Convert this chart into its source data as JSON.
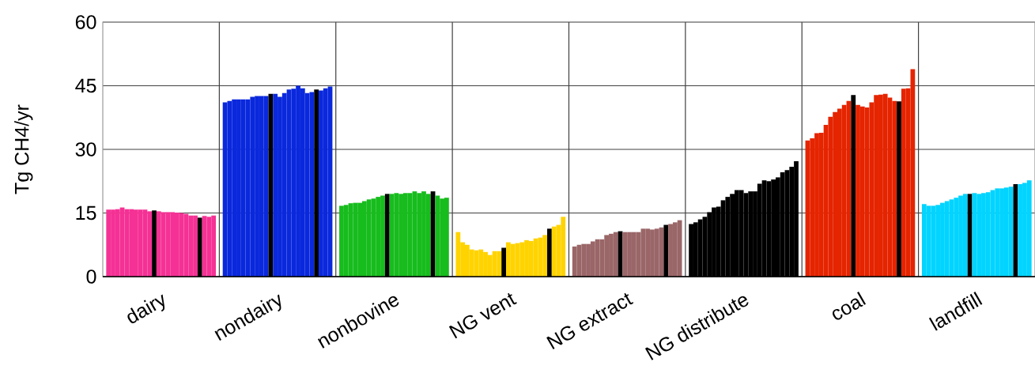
{
  "chart_data": {
    "type": "bar",
    "ylabel": "Tg CH4/yr",
    "categories": [
      "dairy",
      "nondairy",
      "nonbovine",
      "NG vent",
      "NG extract",
      "NG distribute",
      "coal",
      "landfill"
    ],
    "series": [
      {
        "colors": [
          "#f53195",
          "#0a28dc",
          "#17bc1d",
          "#ffd300",
          "#9a6668",
          "#000000",
          "#e52400",
          "#00d4ff"
        ],
        "values": [
          15.8,
          41.1,
          16.7,
          10.5,
          7.1,
          12.4,
          32.1,
          17.1
        ]
      },
      {
        "colors": [
          "#f53195",
          "#0a28dc",
          "#17bc1d",
          "#ffd300",
          "#9a6668",
          "#000000",
          "#e52400",
          "#00d4ff"
        ],
        "values": [
          15.8,
          41.4,
          16.9,
          8.1,
          7.5,
          12.8,
          32.6,
          16.7
        ]
      },
      {
        "colors": [
          "#f53195",
          "#0a28dc",
          "#17bc1d",
          "#ffd300",
          "#9a6668",
          "#000000",
          "#e52400",
          "#00d4ff"
        ],
        "values": [
          15.9,
          41.8,
          17.3,
          7.5,
          7.7,
          13.5,
          33.8,
          16.7
        ]
      },
      {
        "colors": [
          "#f53195",
          "#0a28dc",
          "#17bc1d",
          "#ffd300",
          "#9a6668",
          "#000000",
          "#e52400",
          "#00d4ff"
        ],
        "values": [
          16.3,
          41.8,
          17.4,
          6.4,
          7.7,
          14.1,
          33.9,
          16.9
        ]
      },
      {
        "colors": [
          "#f53195",
          "#0a28dc",
          "#17bc1d",
          "#ffd300",
          "#9a6668",
          "#000000",
          "#e52400",
          "#00d4ff"
        ],
        "values": [
          15.9,
          41.8,
          17.4,
          6.2,
          8.3,
          15.2,
          35.8,
          17.4
        ]
      },
      {
        "colors": [
          "#f53195",
          "#0a28dc",
          "#17bc1d",
          "#ffd300",
          "#9a6668",
          "#000000",
          "#e52400",
          "#00d4ff"
        ],
        "values": [
          15.9,
          41.8,
          17.8,
          6.4,
          8.8,
          16.3,
          37.7,
          17.8
        ]
      },
      {
        "colors": [
          "#f53195",
          "#0a28dc",
          "#17bc1d",
          "#ffd300",
          "#9a6668",
          "#000000",
          "#e52400",
          "#00d4ff"
        ],
        "values": [
          15.8,
          42.4,
          18.2,
          5.8,
          8.8,
          16.5,
          38.8,
          18.2
        ]
      },
      {
        "colors": [
          "#f53195",
          "#0a28dc",
          "#17bc1d",
          "#ffd300",
          "#9a6668",
          "#000000",
          "#e52400",
          "#00d4ff"
        ],
        "values": [
          15.8,
          42.6,
          18.4,
          5.1,
          9.8,
          18.0,
          39.6,
          18.6
        ]
      },
      {
        "colors": [
          "#f53195",
          "#0a28dc",
          "#17bc1d",
          "#ffd300",
          "#9a6668",
          "#000000",
          "#e52400",
          "#00d4ff"
        ],
        "values": [
          15.8,
          42.6,
          18.8,
          6.0,
          10.1,
          18.8,
          40.5,
          19.1
        ]
      },
      {
        "colors": [
          "#f53195",
          "#0a28dc",
          "#17bc1d",
          "#ffd300",
          "#9a6668",
          "#000000",
          "#e52400",
          "#00d4ff"
        ],
        "values": [
          15.4,
          42.6,
          19.1,
          6.0,
          10.5,
          19.5,
          41.4,
          19.5
        ]
      },
      {
        "color": "#000000",
        "values": [
          15.6,
          43.1,
          19.5,
          6.8,
          10.7,
          20.4,
          42.8,
          19.5
        ]
      },
      {
        "colors": [
          "#f53195",
          "#0a28dc",
          "#17bc1d",
          "#ffd300",
          "#9a6668",
          "#000000",
          "#e52400",
          "#00d4ff"
        ],
        "values": [
          15.4,
          43.1,
          19.5,
          8.1,
          10.5,
          20.4,
          40.5,
          19.7
        ]
      },
      {
        "colors": [
          "#f53195",
          "#0a28dc",
          "#17bc1d",
          "#ffd300",
          "#9a6668",
          "#000000",
          "#e52400",
          "#00d4ff"
        ],
        "values": [
          15.2,
          42.4,
          19.7,
          7.7,
          10.5,
          19.7,
          40.1,
          19.5
        ]
      },
      {
        "colors": [
          "#f53195",
          "#0a28dc",
          "#17bc1d",
          "#ffd300",
          "#9a6668",
          "#000000",
          "#e52400",
          "#00d4ff"
        ],
        "values": [
          15.2,
          43.3,
          19.5,
          7.9,
          10.5,
          20.1,
          39.9,
          19.7
        ]
      },
      {
        "colors": [
          "#f53195",
          "#0a28dc",
          "#17bc1d",
          "#ffd300",
          "#9a6668",
          "#000000",
          "#e52400",
          "#00d4ff"
        ],
        "values": [
          15.2,
          44.1,
          19.7,
          8.1,
          10.5,
          20.1,
          41.1,
          19.9
        ]
      },
      {
        "colors": [
          "#f53195",
          "#0a28dc",
          "#17bc1d",
          "#ffd300",
          "#9a6668",
          "#000000",
          "#e52400",
          "#00d4ff"
        ],
        "values": [
          15.1,
          44.3,
          19.7,
          8.6,
          11.3,
          21.9,
          42.8,
          20.4
        ]
      },
      {
        "colors": [
          "#f53195",
          "#0a28dc",
          "#17bc1d",
          "#ffd300",
          "#9a6668",
          "#000000",
          "#e52400",
          "#00d4ff"
        ],
        "values": [
          15.0,
          45.0,
          20.1,
          8.4,
          11.3,
          22.7,
          42.9,
          20.8
        ]
      },
      {
        "colors": [
          "#f53195",
          "#0a28dc",
          "#17bc1d",
          "#ffd300",
          "#9a6668",
          "#000000",
          "#e52400",
          "#00d4ff"
        ],
        "values": [
          14.8,
          44.4,
          19.7,
          9.0,
          11.1,
          22.5,
          43.1,
          20.8
        ]
      },
      {
        "colors": [
          "#f53195",
          "#0a28dc",
          "#17bc1d",
          "#ffd300",
          "#9a6668",
          "#000000",
          "#e52400",
          "#00d4ff"
        ],
        "values": [
          14.4,
          43.3,
          20.1,
          9.2,
          11.3,
          22.9,
          42.2,
          21.0
        ]
      },
      {
        "colors": [
          "#f53195",
          "#0a28dc",
          "#17bc1d",
          "#ffd300",
          "#9a6668",
          "#000000",
          "#e52400",
          "#00d4ff"
        ],
        "values": [
          14.4,
          43.5,
          19.5,
          9.8,
          11.6,
          23.4,
          41.4,
          21.2
        ]
      },
      {
        "color": "#000000",
        "values": [
          13.9,
          44.1,
          20.1,
          11.3,
          12.2,
          24.6,
          41.3,
          21.8
        ]
      },
      {
        "colors": [
          "#f53195",
          "#0a28dc",
          "#17bc1d",
          "#ffd300",
          "#9a6668",
          "#000000",
          "#e52400",
          "#00d4ff"
        ],
        "values": [
          14.3,
          43.9,
          19.1,
          11.8,
          12.4,
          25.1,
          44.3,
          21.8
        ]
      },
      {
        "colors": [
          "#f53195",
          "#0a28dc",
          "#17bc1d",
          "#ffd300",
          "#9a6668",
          "#000000",
          "#e52400",
          "#00d4ff"
        ],
        "values": [
          14.1,
          44.4,
          18.4,
          12.2,
          12.8,
          25.9,
          44.4,
          22.1
        ]
      },
      {
        "colors": [
          "#f53195",
          "#0a28dc",
          "#17bc1d",
          "#ffd300",
          "#9a6668",
          "#000000",
          "#e52400",
          "#00d4ff"
        ],
        "values": [
          14.4,
          44.8,
          18.6,
          14.1,
          13.3,
          27.2,
          48.9,
          22.7
        ]
      }
    ],
    "ylim": [
      0,
      60
    ],
    "yticks": [
      0,
      15,
      30,
      45,
      60
    ],
    "grid": true
  }
}
